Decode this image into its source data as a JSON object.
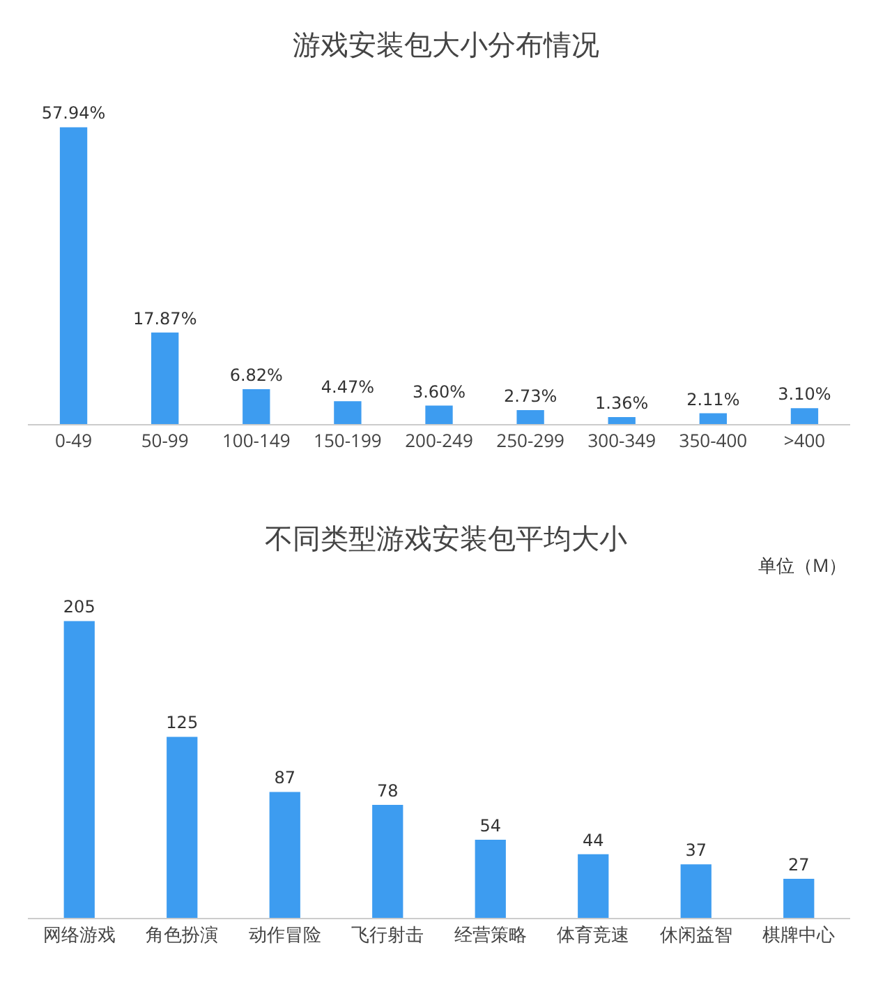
{
  "chart_data": [
    {
      "type": "bar",
      "title": "游戏安装包大小分布情况",
      "categories": [
        "0-49",
        "50-99",
        "100-149",
        "150-199",
        "200-249",
        "250-299",
        "300-349",
        "350-400",
        ">400"
      ],
      "values": [
        57.94,
        17.87,
        6.82,
        4.47,
        3.6,
        2.73,
        1.36,
        2.11,
        3.1
      ],
      "value_labels": [
        "57.94%",
        "17.87%",
        "6.82%",
        "4.47%",
        "3.60%",
        "2.73%",
        "1.36%",
        "2.11%",
        "3.10%"
      ],
      "color": "#3d9cf0",
      "grid": false,
      "legend": false
    },
    {
      "type": "bar",
      "title": "不同类型游戏安装包平均大小",
      "annotations": [
        "单位（M）"
      ],
      "categories": [
        "网络游戏",
        "角色扮演",
        "动作冒险",
        "飞行射击",
        "经营策略",
        "体育竞速",
        "休闲益智",
        "棋牌中心"
      ],
      "values": [
        205,
        125,
        87,
        78,
        54,
        44,
        37,
        27
      ],
      "data_labels": true,
      "color": "#3d9cf0",
      "grid": false,
      "legend": false
    }
  ]
}
